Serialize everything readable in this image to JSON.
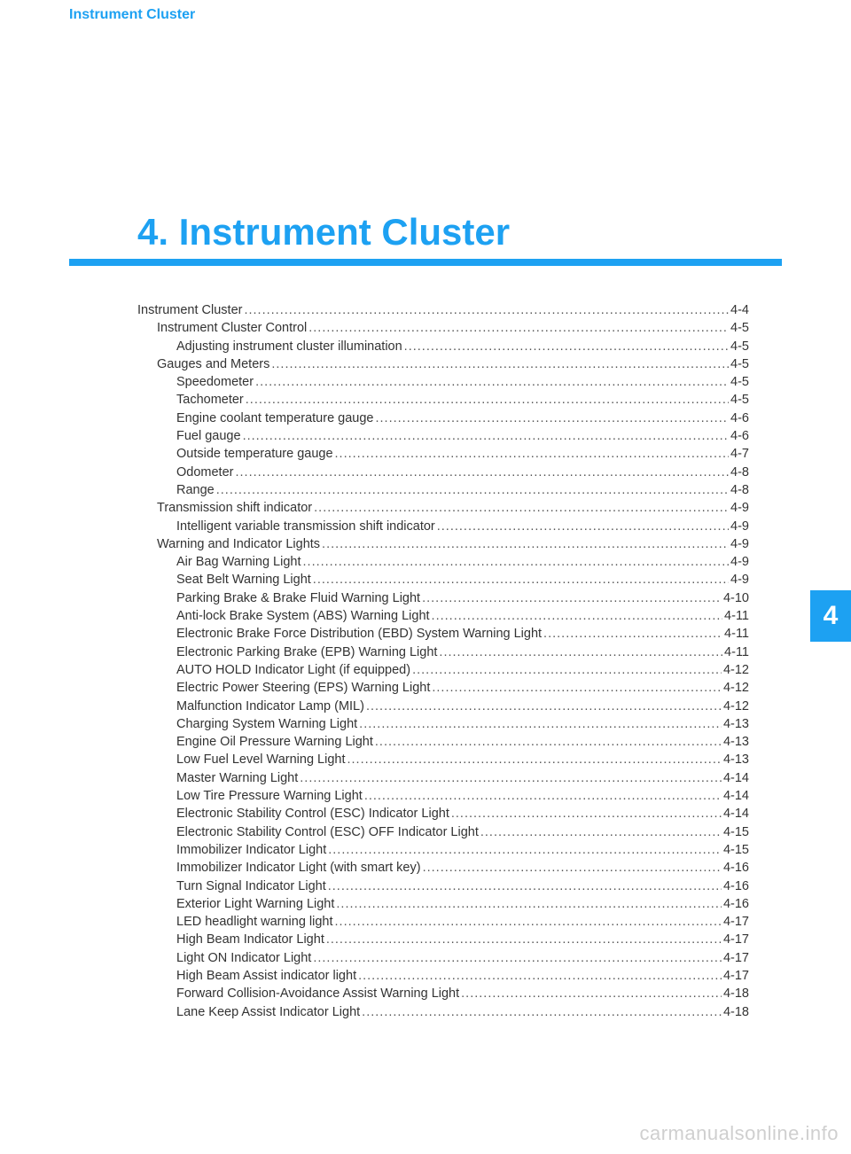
{
  "colors": {
    "accent": "#1da1f2",
    "text": "#333333",
    "watermark": "#cfcfcf",
    "background": "#ffffff"
  },
  "header": {
    "label": "Instrument Cluster"
  },
  "chapter": {
    "number": "4.",
    "title": "Instrument Cluster"
  },
  "sideTab": {
    "label": "4"
  },
  "watermark": "carmanualsonline.info",
  "toc": [
    {
      "label": "Instrument Cluster",
      "page": "4-4",
      "level": 0
    },
    {
      "label": "Instrument Cluster Control",
      "page": "4-5",
      "level": 1
    },
    {
      "label": "Adjusting instrument cluster illumination",
      "page": "4-5",
      "level": 2
    },
    {
      "label": "Gauges and Meters",
      "page": "4-5",
      "level": 1
    },
    {
      "label": "Speedometer",
      "page": "4-5",
      "level": 2
    },
    {
      "label": "Tachometer",
      "page": "4-5",
      "level": 2
    },
    {
      "label": "Engine coolant temperature gauge",
      "page": "4-6",
      "level": 2
    },
    {
      "label": "Fuel gauge",
      "page": "4-6",
      "level": 2
    },
    {
      "label": "Outside temperature gauge",
      "page": "4-7",
      "level": 2
    },
    {
      "label": "Odometer",
      "page": "4-8",
      "level": 2
    },
    {
      "label": "Range",
      "page": "4-8",
      "level": 2
    },
    {
      "label": "Transmission shift indicator",
      "page": "4-9",
      "level": 1
    },
    {
      "label": "Intelligent variable transmission shift indicator",
      "page": "4-9",
      "level": 2
    },
    {
      "label": "Warning and Indicator Lights",
      "page": "4-9",
      "level": 1
    },
    {
      "label": "Air Bag Warning Light",
      "page": "4-9",
      "level": 2
    },
    {
      "label": "Seat Belt Warning Light",
      "page": "4-9",
      "level": 2
    },
    {
      "label": "Parking Brake & Brake Fluid Warning Light",
      "page": "4-10",
      "level": 2
    },
    {
      "label": "Anti-lock Brake System (ABS) Warning Light",
      "page": "4-11",
      "level": 2
    },
    {
      "label": "Electronic Brake Force Distribution (EBD) System Warning Light",
      "page": "4-11",
      "level": 2
    },
    {
      "label": "Electronic Parking Brake (EPB) Warning Light",
      "page": "4-11",
      "level": 2
    },
    {
      "label": "AUTO HOLD Indicator Light (if equipped)",
      "page": "4-12",
      "level": 2
    },
    {
      "label": "Electric Power Steering (EPS) Warning Light",
      "page": "4-12",
      "level": 2
    },
    {
      "label": "Malfunction Indicator Lamp (MIL)",
      "page": "4-12",
      "level": 2
    },
    {
      "label": "Charging System Warning Light",
      "page": "4-13",
      "level": 2
    },
    {
      "label": "Engine Oil Pressure Warning Light",
      "page": "4-13",
      "level": 2
    },
    {
      "label": "Low Fuel Level Warning Light",
      "page": "4-13",
      "level": 2
    },
    {
      "label": "Master Warning Light",
      "page": "4-14",
      "level": 2
    },
    {
      "label": "Low Tire Pressure Warning Light",
      "page": "4-14",
      "level": 2
    },
    {
      "label": "Electronic Stability Control (ESC) Indicator Light",
      "page": "4-14",
      "level": 2
    },
    {
      "label": "Electronic Stability Control (ESC) OFF Indicator Light",
      "page": "4-15",
      "level": 2
    },
    {
      "label": "Immobilizer Indicator Light",
      "page": "4-15",
      "level": 2
    },
    {
      "label": "Immobilizer Indicator Light (with smart key)",
      "page": "4-16",
      "level": 2
    },
    {
      "label": "Turn Signal Indicator Light",
      "page": "4-16",
      "level": 2
    },
    {
      "label": "Exterior Light Warning Light",
      "page": "4-16",
      "level": 2
    },
    {
      "label": "LED headlight warning light",
      "page": "4-17",
      "level": 2
    },
    {
      "label": "High Beam Indicator Light",
      "page": "4-17",
      "level": 2
    },
    {
      "label": "Light ON Indicator Light",
      "page": "4-17",
      "level": 2
    },
    {
      "label": "High Beam Assist indicator light",
      "page": "4-17",
      "level": 2
    },
    {
      "label": "Forward Collision-Avoidance Assist Warning Light",
      "page": "4-18",
      "level": 2
    },
    {
      "label": "Lane Keep Assist Indicator Light",
      "page": "4-18",
      "level": 2
    }
  ]
}
